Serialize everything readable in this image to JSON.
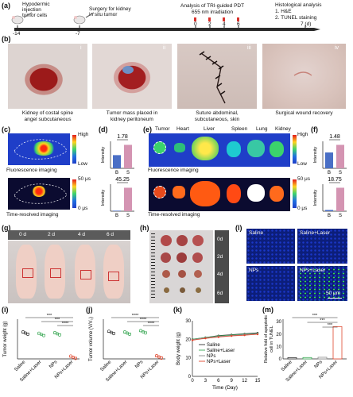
{
  "panels": {
    "a": "(a)",
    "b": "(b)",
    "c": "(c)",
    "d": "(d)",
    "e": "(e)",
    "f": "(f)",
    "g": "(g)",
    "h": "(h)",
    "i": "(i)",
    "j": "(j)",
    "k": "(k)",
    "l": "(l)",
    "m": "(m)"
  },
  "timeline": {
    "step1": "Hypodermic\ninjection\ntumor cells",
    "step2": "Surgery for kidney\nin situ tumor",
    "step3": "Analysis of TRI-guided PDT\n655 nm irradiation",
    "step4": "Histological analysis\n1. H&E\n2. TUNEL staining",
    "ticks": [
      "-14",
      "-7",
      "0",
      "2",
      "4",
      "6",
      "7 (d)"
    ]
  },
  "photos_b": {
    "roman": [
      "i",
      "ii",
      "iii",
      "iv"
    ],
    "captions": [
      "Kidney of costal spine\nangel subcutaneous",
      "Tumor mass placed in\nkidney peritoneum",
      "Suture abdominal,\nsubcutaneous, skin",
      "Surgical wound recovery"
    ]
  },
  "imaging": {
    "fluorescence": "Fluorescence imaging",
    "time_resolved": "Time-resolved imaging",
    "high": "High",
    "low": "Low",
    "us50": "50 μs",
    "us0": "0 μs",
    "organs": [
      "Tumor",
      "Heart",
      "Liver",
      "Spleen",
      "Lung",
      "Kidney"
    ]
  },
  "bars_small": {
    "ylabel": "Intensity",
    "categories": [
      "B",
      "S"
    ],
    "d_top": {
      "ratio": "1.78",
      "values": [
        1.0,
        1.78
      ]
    },
    "d_bottom": {
      "ratio": "45.25",
      "values": [
        0.05,
        2.26
      ]
    },
    "f_top": {
      "ratio": "1.48",
      "values": [
        1.0,
        1.48
      ]
    },
    "f_bottom": {
      "ratio": "18.75",
      "values": [
        0.1,
        1.88
      ]
    }
  },
  "mice_g": {
    "days": [
      "0 d",
      "2 d",
      "4 d",
      "6 d"
    ]
  },
  "tumors_h": {
    "days": [
      "0d",
      "2d",
      "4d",
      "6d"
    ]
  },
  "tunel_l": {
    "labels": [
      "Saline",
      "Saline+Laser",
      "NPs",
      "NPs+Laser"
    ],
    "scale": "50 μm"
  },
  "chart_data": [
    {
      "type": "scatter",
      "panel": "i",
      "ylabel": "Tumor weight (g)",
      "categories": [
        "Saline",
        "Saline+Laser",
        "NPs",
        "NPs+Laser"
      ],
      "values": [
        0.78,
        0.74,
        0.76,
        0.05
      ],
      "significance": [
        "***",
        "***",
        "****"
      ]
    },
    {
      "type": "scatter",
      "panel": "j",
      "ylabel": "Tumor volume (V/V₀)",
      "categories": [
        "Saline",
        "Saline+Laser",
        "NPs",
        "NPs+Laser"
      ],
      "values": [
        0.8,
        0.78,
        0.82,
        0.06
      ],
      "significance": [
        "****",
        "****",
        "****"
      ]
    },
    {
      "type": "line",
      "panel": "k",
      "xlabel": "Time (Day)",
      "ylabel": "Body weight (g)",
      "x": [
        0,
        3,
        6,
        9,
        12,
        15
      ],
      "xticks": [
        "0",
        "3",
        "6",
        "9",
        "12",
        "15"
      ],
      "yticks": [
        "0",
        "10",
        "20",
        "30"
      ],
      "ylim": [
        0,
        30
      ],
      "series": [
        {
          "name": "Saline",
          "values": [
            20,
            21,
            22,
            22.5,
            23,
            23.5
          ]
        },
        {
          "name": "Saline+Laser",
          "values": [
            20,
            21,
            21.8,
            22.3,
            22.8,
            23.2
          ]
        },
        {
          "name": "NPs",
          "values": [
            19.8,
            20.8,
            21.5,
            22,
            22.6,
            23
          ]
        },
        {
          "name": "NPs+Laser",
          "values": [
            19.5,
            20.5,
            21.2,
            21.8,
            22.2,
            22.7
          ]
        }
      ]
    },
    {
      "type": "bar",
      "panel": "m",
      "ylabel": "Relative fold of apoptotic\ncell in TUNEL",
      "categories": [
        "Saline",
        "Saline+Laser",
        "NPs",
        "NPs+Laser"
      ],
      "values": [
        1,
        1.1,
        1.3,
        26
      ],
      "yticks": [
        "0",
        "10",
        "20",
        "30"
      ],
      "ylim": [
        0,
        32
      ],
      "significance": [
        "***",
        "***",
        "***"
      ]
    }
  ]
}
